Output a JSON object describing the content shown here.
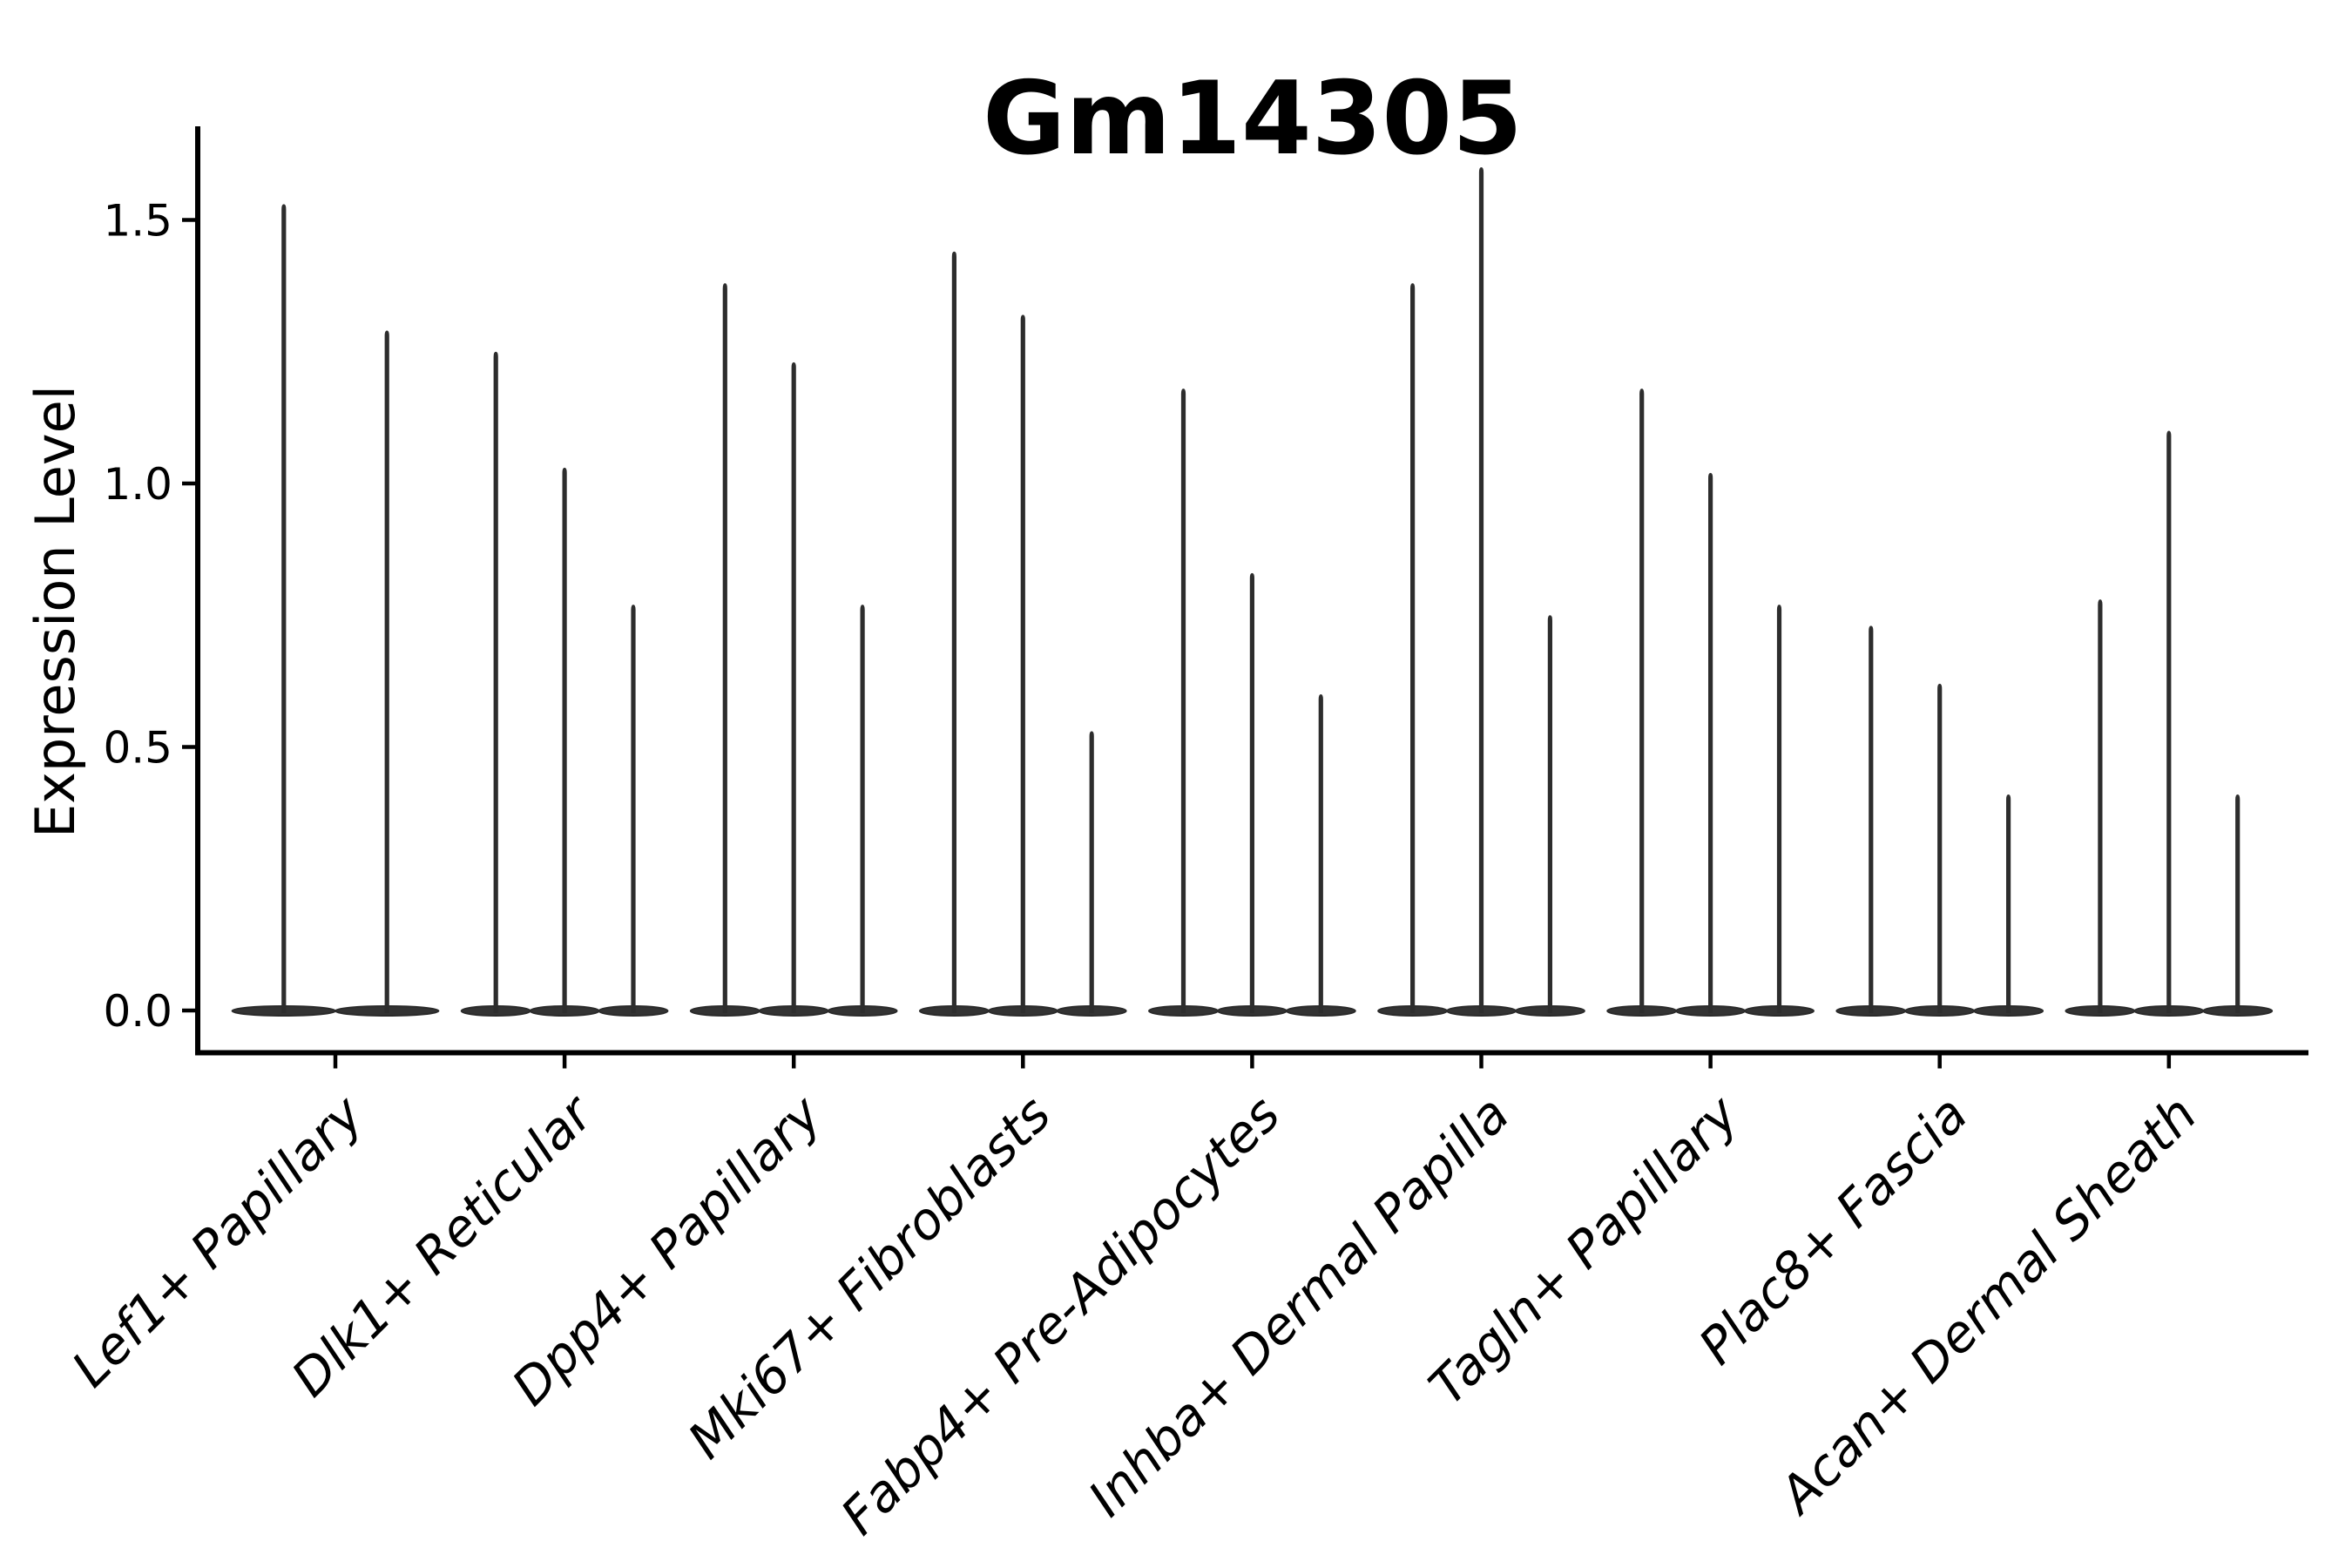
{
  "chart_data": {
    "type": "violin",
    "title": "Gm14305",
    "ylabel": "Expression Level",
    "xlabel": "",
    "grid": false,
    "legend": "none",
    "background_color": "#ffffff",
    "violin_color": "#2d2d2d",
    "violin_base_color": "#333333",
    "axis_color": "#000000",
    "ylim": [
      -0.08,
      1.68
    ],
    "yticks": [
      0.0,
      0.5,
      1.0,
      1.5
    ],
    "ytick_labels": [
      "0.0",
      "0.5",
      "1.0",
      "1.5"
    ],
    "categories": [
      "Lef1+ Papillary",
      "Dlk1+ Reticular",
      "Dpp4+ Papillary",
      "Mki67+ Fibroblasts",
      "Fabp4+ Pre-Adipocytes",
      "Inhba+ Dermal Papilla",
      "Tagln+ Papillary",
      "Plac8+ Fascia",
      "Acan+ Dermal Sheath"
    ],
    "violin_min": 0.0,
    "groups": [
      {
        "category": "Lef1+ Papillary",
        "violin_maxima": [
          1.53,
          1.29
        ]
      },
      {
        "category": "Dlk1+ Reticular",
        "violin_maxima": [
          1.25,
          1.03,
          0.77
        ]
      },
      {
        "category": "Dpp4+ Papillary",
        "violin_maxima": [
          1.38,
          1.23,
          0.77
        ]
      },
      {
        "category": "Mki67+ Fibroblasts",
        "violin_maxima": [
          1.44,
          1.32,
          0.53
        ]
      },
      {
        "category": "Fabp4+ Pre-Adipocytes",
        "violin_maxima": [
          1.18,
          0.83,
          0.6
        ]
      },
      {
        "category": "Inhba+ Dermal Papilla",
        "violin_maxima": [
          1.38,
          1.6,
          0.75
        ]
      },
      {
        "category": "Tagln+ Papillary",
        "violin_maxima": [
          1.18,
          1.02,
          0.77
        ]
      },
      {
        "category": "Plac8+ Fascia",
        "violin_maxima": [
          0.73,
          0.62,
          0.41
        ]
      },
      {
        "category": "Acan+ Dermal Sheath",
        "violin_maxima": [
          0.78,
          1.1,
          0.41
        ]
      }
    ]
  }
}
